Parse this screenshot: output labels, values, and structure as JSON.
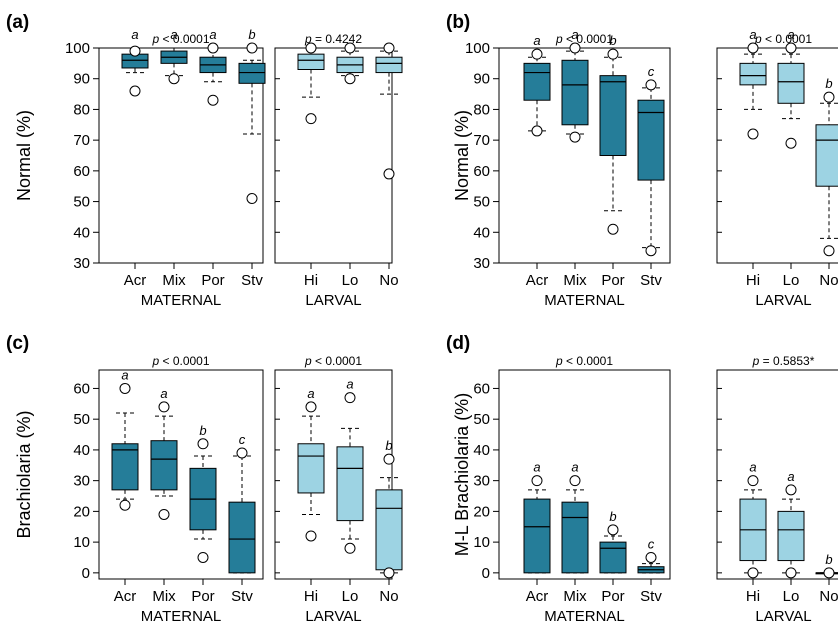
{
  "figure": {
    "panel_labels": [
      "(a)",
      "(b)",
      "(c)",
      "(d)"
    ]
  },
  "chart_data": [
    {
      "type": "boxplot",
      "panel": "(a)",
      "ylabel": "Normal (%)",
      "ylim": [
        30,
        100
      ],
      "yticks": [
        30,
        40,
        50,
        60,
        70,
        80,
        90,
        100
      ],
      "groups": [
        {
          "xlabel": "MATERNAL",
          "pvalue": "< 0.0001",
          "color": "#257d99",
          "categories": [
            "Acr",
            "Mix",
            "Por",
            "Stv"
          ],
          "letters": [
            "a",
            "a",
            "a",
            "b"
          ],
          "boxes": [
            {
              "whislo": 92,
              "q1": 93.5,
              "med": 96,
              "q3": 98,
              "whishi": 100,
              "outliers": [
                99,
                86
              ]
            },
            {
              "whislo": 91,
              "q1": 95,
              "med": 97,
              "q3": 99,
              "whishi": 100,
              "outliers": [
                90
              ]
            },
            {
              "whislo": 89,
              "q1": 92,
              "med": 94.5,
              "q3": 97,
              "whishi": 100,
              "outliers": [
                100,
                83
              ]
            },
            {
              "whislo": 72,
              "q1": 88.5,
              "med": 92,
              "q3": 95,
              "whishi": 96,
              "outliers": [
                100,
                51
              ]
            }
          ]
        },
        {
          "xlabel": "LARVAL",
          "pvalue": "= 0.4242",
          "color": "#9dd3e3",
          "categories": [
            "Hi",
            "Lo",
            "No"
          ],
          "letters": [],
          "boxes": [
            {
              "whislo": 84,
              "q1": 93,
              "med": 96,
              "q3": 98,
              "whishi": 100,
              "outliers": [
                100,
                77
              ]
            },
            {
              "whislo": 91,
              "q1": 92,
              "med": 94.5,
              "q3": 97,
              "whishi": 99,
              "outliers": [
                100,
                90
              ]
            },
            {
              "whislo": 85,
              "q1": 92,
              "med": 95,
              "q3": 97,
              "whishi": 99,
              "outliers": [
                100,
                59
              ]
            }
          ]
        }
      ]
    },
    {
      "type": "boxplot",
      "panel": "(b)",
      "ylabel": "Normal (%)",
      "ylim": [
        30,
        100
      ],
      "yticks": [
        30,
        40,
        50,
        60,
        70,
        80,
        90,
        100
      ],
      "groups": [
        {
          "xlabel": "MATERNAL",
          "pvalue": "< 0.0001",
          "color": "#257d99",
          "categories": [
            "Acr",
            "Mix",
            "Por",
            "Stv"
          ],
          "letters": [
            "a",
            "a",
            "b",
            "c"
          ],
          "boxes": [
            {
              "whislo": 73,
              "q1": 83,
              "med": 92,
              "q3": 95,
              "whishi": 97,
              "outliers": [
                98,
                73
              ]
            },
            {
              "whislo": 72,
              "q1": 75,
              "med": 88,
              "q3": 96,
              "whishi": 99,
              "outliers": [
                100,
                71
              ]
            },
            {
              "whislo": 47,
              "q1": 65,
              "med": 89,
              "q3": 91,
              "whishi": 97,
              "outliers": [
                98,
                41
              ]
            },
            {
              "whislo": 35,
              "q1": 57,
              "med": 79,
              "q3": 83,
              "whishi": 87,
              "outliers": [
                88,
                34
              ]
            }
          ]
        },
        {
          "xlabel": "LARVAL",
          "pvalue": "< 0.0001",
          "color": "#9dd3e3",
          "categories": [
            "Hi",
            "Lo",
            "No"
          ],
          "letters": [
            "a",
            "a",
            "b"
          ],
          "boxes": [
            {
              "whislo": 80,
              "q1": 88,
              "med": 91,
              "q3": 95,
              "whishi": 98,
              "outliers": [
                100,
                72
              ]
            },
            {
              "whislo": 77,
              "q1": 82,
              "med": 89,
              "q3": 95,
              "whishi": 98,
              "outliers": [
                100,
                69
              ]
            },
            {
              "whislo": 38,
              "q1": 55,
              "med": 70,
              "q3": 75,
              "whishi": 82,
              "outliers": [
                84,
                34
              ]
            }
          ]
        }
      ]
    },
    {
      "type": "boxplot",
      "panel": "(c)",
      "ylabel": "Brachiolaria (%)",
      "ylim": [
        -2,
        66
      ],
      "yticks": [
        0,
        10,
        20,
        30,
        40,
        50,
        60
      ],
      "groups": [
        {
          "xlabel": "MATERNAL",
          "pvalue": "< 0.0001",
          "color": "#257d99",
          "categories": [
            "Acr",
            "Mix",
            "Por",
            "Stv"
          ],
          "letters": [
            "a",
            "a",
            "b",
            "c"
          ],
          "boxes": [
            {
              "whislo": 24,
              "q1": 27,
              "med": 40,
              "q3": 42,
              "whishi": 52,
              "outliers": [
                60,
                22
              ]
            },
            {
              "whislo": 25,
              "q1": 27,
              "med": 37,
              "q3": 43,
              "whishi": 51,
              "outliers": [
                54,
                19
              ]
            },
            {
              "whislo": 11,
              "q1": 14,
              "med": 24,
              "q3": 34,
              "whishi": 38,
              "outliers": [
                42,
                5
              ]
            },
            {
              "whislo": 0,
              "q1": 0,
              "med": 11,
              "q3": 23,
              "whishi": 38,
              "outliers": [
                39
              ]
            }
          ]
        },
        {
          "xlabel": "LARVAL",
          "pvalue": "< 0.0001",
          "color": "#9dd3e3",
          "categories": [
            "Hi",
            "Lo",
            "No"
          ],
          "letters": [
            "a",
            "a",
            "b"
          ],
          "boxes": [
            {
              "whislo": 19,
              "q1": 26,
              "med": 38,
              "q3": 42,
              "whishi": 51,
              "outliers": [
                54,
                12
              ]
            },
            {
              "whislo": 11,
              "q1": 17,
              "med": 34,
              "q3": 41,
              "whishi": 47,
              "outliers": [
                57,
                8
              ]
            },
            {
              "whislo": 0,
              "q1": 1,
              "med": 21,
              "q3": 27,
              "whishi": 31,
              "outliers": [
                37,
                0
              ]
            }
          ]
        }
      ]
    },
    {
      "type": "boxplot",
      "panel": "(d)",
      "ylabel": "M-L Brachiolaria (%)",
      "ylim": [
        -2,
        66
      ],
      "yticks": [
        0,
        10,
        20,
        30,
        40,
        50,
        60
      ],
      "groups": [
        {
          "xlabel": "MATERNAL",
          "pvalue": "< 0.0001",
          "color": "#257d99",
          "categories": [
            "Acr",
            "Mix",
            "Por",
            "Stv"
          ],
          "letters": [
            "a",
            "a",
            "b",
            "c"
          ],
          "boxes": [
            {
              "whislo": 0,
              "q1": 0,
              "med": 15,
              "q3": 24,
              "whishi": 27,
              "outliers": [
                30
              ]
            },
            {
              "whislo": 0,
              "q1": 0,
              "med": 18,
              "q3": 23,
              "whishi": 27,
              "outliers": [
                30
              ]
            },
            {
              "whislo": 0,
              "q1": 0,
              "med": 8,
              "q3": 10,
              "whishi": 12,
              "outliers": [
                14
              ]
            },
            {
              "whislo": 0,
              "q1": 0,
              "med": 1,
              "q3": 2,
              "whishi": 3,
              "outliers": [
                5
              ]
            }
          ]
        },
        {
          "xlabel": "LARVAL",
          "pvalue": "= 0.5853*",
          "color": "#9dd3e3",
          "categories": [
            "Hi",
            "Lo",
            "No"
          ],
          "letters": [
            "a",
            "a",
            "b"
          ],
          "boxes": [
            {
              "whislo": 0,
              "q1": 4,
              "med": 14,
              "q3": 24,
              "whishi": 27,
              "outliers": [
                30,
                0
              ]
            },
            {
              "whislo": 0,
              "q1": 4,
              "med": 14,
              "q3": 20,
              "whishi": 24,
              "outliers": [
                27,
                0
              ]
            },
            {
              "whislo": 0,
              "q1": 0,
              "med": 0,
              "q3": 0,
              "whishi": 0,
              "outliers": [
                0
              ]
            }
          ]
        }
      ]
    }
  ]
}
